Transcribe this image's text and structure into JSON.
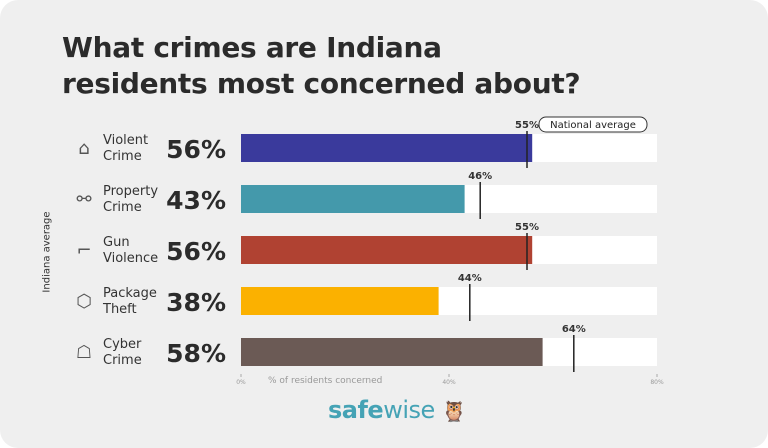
{
  "chart_data": {
    "type": "bar",
    "title": "What crimes are Indiana residents most concerned about?",
    "title_lines": [
      "What crimes are Indiana",
      "residents most concerned about?"
    ],
    "ylabel": "Indiana average",
    "xlabel": "% of residents concerned",
    "xlim": [
      0,
      80
    ],
    "xticks": [
      "0%",
      "40%",
      "80%"
    ],
    "categories": [
      {
        "line1": "Violent",
        "line2": "Crime",
        "icon": "house-icon"
      },
      {
        "line1": "Property",
        "line2": "Crime",
        "icon": "handcuffs-icon"
      },
      {
        "line1": "Gun",
        "line2": "Violence",
        "icon": "gun-icon"
      },
      {
        "line1": "Package",
        "line2": "Theft",
        "icon": "package-icon"
      },
      {
        "line1": "Cyber",
        "line2": "Crime",
        "icon": "hacker-icon"
      }
    ],
    "values": [
      56,
      43,
      56,
      38,
      58
    ],
    "value_labels": [
      "56%",
      "43%",
      "56%",
      "38%",
      "58%"
    ],
    "national_average": [
      55,
      46,
      55,
      44,
      64
    ],
    "national_labels": [
      "55%",
      "46%",
      "55%",
      "44%",
      "64%"
    ],
    "legend": "National average",
    "colors": [
      "#3a3a9c",
      "#4499ab",
      "#b04232",
      "#fbb100",
      "#6b5a55"
    ]
  },
  "logo": {
    "bold": "safe",
    "light": "wise"
  }
}
